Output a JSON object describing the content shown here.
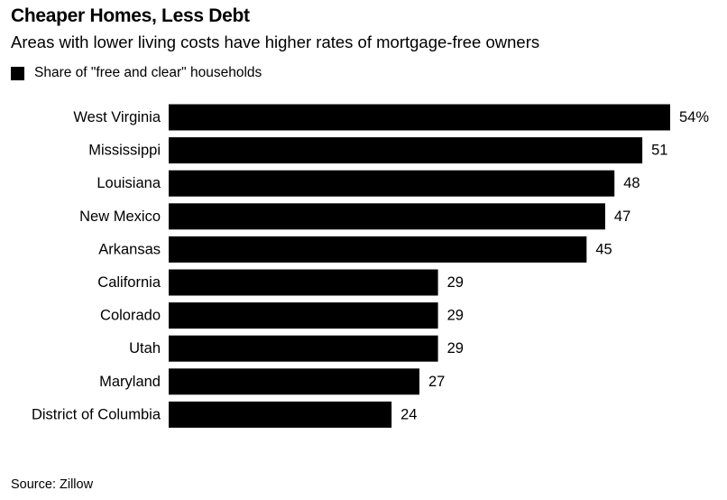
{
  "chart_data": {
    "type": "bar",
    "orientation": "horizontal",
    "title": "Cheaper Homes, Less Debt",
    "subtitle": "Areas with lower living costs have higher rates of mortgage-free owners",
    "series": [
      {
        "name": "Share of \"free and clear\" households",
        "color": "#000000",
        "values": [
          54,
          51,
          48,
          47,
          45,
          29,
          29,
          29,
          27,
          24
        ]
      }
    ],
    "categories": [
      "West Virginia",
      "Mississippi",
      "Louisiana",
      "New Mexico",
      "Arkansas",
      "California",
      "Colorado",
      "Utah",
      "Maryland",
      "District of Columbia"
    ],
    "value_labels": [
      "54%",
      "51",
      "48",
      "47",
      "45",
      "29",
      "29",
      "29",
      "27",
      "24"
    ],
    "xlim": [
      0,
      54
    ],
    "grid": false,
    "legend_position": "top-left",
    "source": "Source: Zillow"
  }
}
